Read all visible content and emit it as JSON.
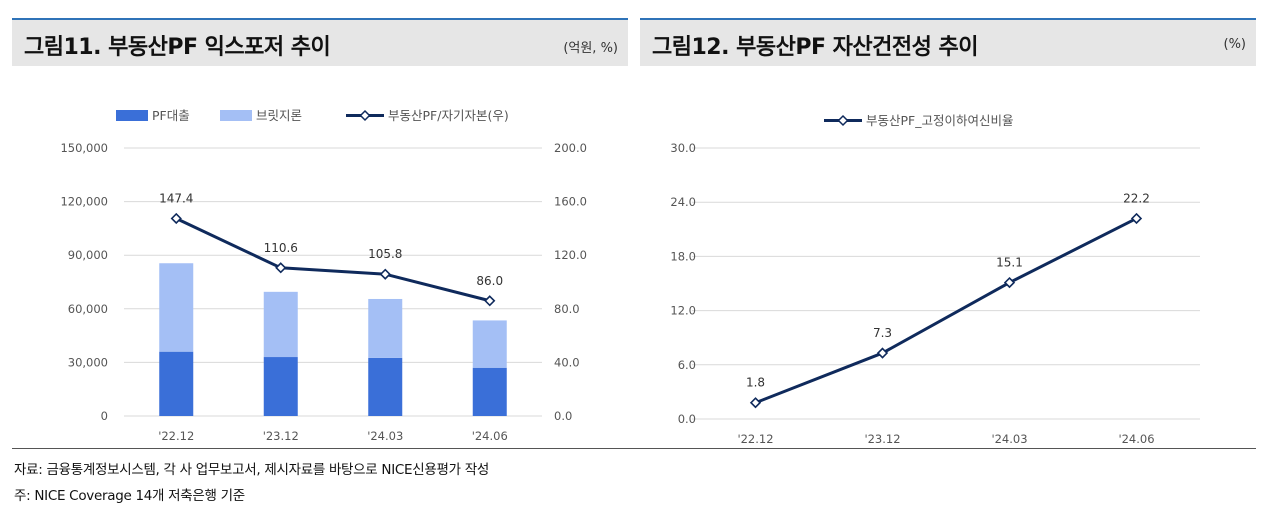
{
  "left": {
    "title": "그림11. 부동산PF 익스포저 추이",
    "unit": "(억원, %)",
    "legend": {
      "pf_loan": "PF대출",
      "bridge": "브릿지론",
      "ratio": "부동산PF/자기자본(우)"
    }
  },
  "right": {
    "title": "그림12. 부동산PF 자산건전성 추이",
    "unit": "(%)",
    "legend": {
      "ratio": "부동산PF_고정이하여신비율"
    }
  },
  "notes": {
    "source": "자료: 금융통계정보시스템, 각 사 업무보고서, 제시자료를 바탕으로 NICE신용평가 작성",
    "footnote": "주: NICE Coverage 14개 저축은행 기준"
  },
  "chart_data": [
    {
      "type": "bar",
      "title": "그림11. 부동산PF 익스포저 추이",
      "categories": [
        "'22.12",
        "'23.12",
        "'24.03",
        "'24.06"
      ],
      "stacked": true,
      "series": [
        {
          "name": "PF대출",
          "type": "bar",
          "axis": "left",
          "color": "#3a6fd8",
          "values": [
            36000,
            33000,
            32500,
            27000
          ]
        },
        {
          "name": "브릿지론",
          "type": "bar",
          "axis": "left",
          "color": "#a4bff5",
          "values": [
            49500,
            36500,
            33000,
            26500
          ]
        },
        {
          "name": "부동산PF/자기자본(우)",
          "type": "line",
          "axis": "right",
          "color": "#0f2a5c",
          "values": [
            147.4,
            110.6,
            105.8,
            86.0
          ]
        }
      ],
      "y_left": {
        "ylim": [
          0,
          150000
        ],
        "ticks": [
          "0",
          "30,000",
          "60,000",
          "90,000",
          "120,000",
          "150,000"
        ]
      },
      "y_right": {
        "ylim": [
          0,
          200
        ],
        "ticks": [
          "0.0",
          "40.0",
          "80.0",
          "120.0",
          "160.0",
          "200.0"
        ]
      },
      "data_labels": [
        "147.4",
        "110.6",
        "105.8",
        "86.0"
      ],
      "grid": true,
      "legend_position": "top"
    },
    {
      "type": "line",
      "title": "그림12. 부동산PF 자산건전성 추이",
      "categories": [
        "'22.12",
        "'23.12",
        "'24.03",
        "'24.06"
      ],
      "series": [
        {
          "name": "부동산PF_고정이하여신비율",
          "color": "#0f2a5c",
          "values": [
            1.8,
            7.3,
            15.1,
            22.2
          ]
        }
      ],
      "y": {
        "ylim": [
          0,
          30
        ],
        "ticks": [
          "0.0",
          "6.0",
          "12.0",
          "18.0",
          "24.0",
          "30.0"
        ]
      },
      "data_labels": [
        "1.8",
        "7.3",
        "15.1",
        "22.2"
      ],
      "grid": true,
      "legend_position": "top"
    }
  ]
}
